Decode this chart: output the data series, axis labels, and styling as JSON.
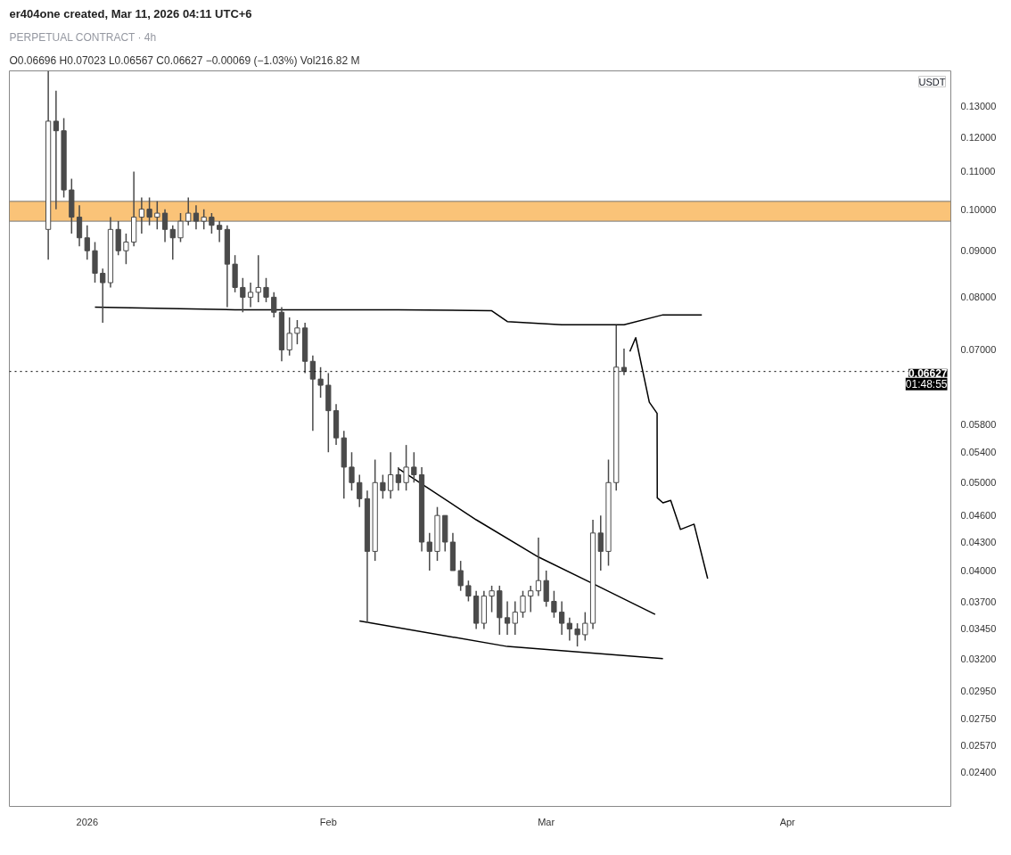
{
  "chart_data": {
    "type": "candlestick",
    "title": "PERPETUAL CONTRACT · 4h",
    "subtitle": "O0.06696 H0.07023 L0.06567 C0.06627 −0.00069 (−1.03%) Vol216.82 M",
    "ylabel": "USDT",
    "annotations": [
      "er404one created, Mar 11, 2026 04:11 UTC+6",
      "01:48:55"
    ],
    "color": "#4a4a4a",
    "log": "y",
    "grid": false,
    "x": [
      "2025-12-27",
      "2025-12-28",
      "2025-12-29",
      "2025-12-30",
      "2025-12-31",
      "2026-01-01",
      "2026-01-02",
      "2026-01-03",
      "2026-01-04",
      "2026-01-05",
      "2026-01-06",
      "2026-01-07",
      "2026-01-08",
      "2026-01-09",
      "2026-01-10",
      "2026-01-11",
      "2026-01-12",
      "2026-01-13",
      "2026-01-14",
      "2026-01-15",
      "2026-01-16",
      "2026-01-17",
      "2026-01-18",
      "2026-01-19",
      "2026-01-20",
      "2026-01-21",
      "2026-01-22",
      "2026-01-23",
      "2026-01-24",
      "2026-01-25",
      "2026-01-26",
      "2026-01-27",
      "2026-01-28",
      "2026-01-29",
      "2026-01-30",
      "2026-01-31",
      "2026-02-01",
      "2026-02-02",
      "2026-02-03",
      "2026-02-04",
      "2026-02-05",
      "2026-02-06",
      "2026-02-07",
      "2026-02-08",
      "2026-02-09",
      "2026-02-10",
      "2026-02-11",
      "2026-02-12",
      "2026-02-13",
      "2026-02-14",
      "2026-02-15",
      "2026-02-16",
      "2026-02-17",
      "2026-02-18",
      "2026-02-19",
      "2026-02-20",
      "2026-02-21",
      "2026-02-22",
      "2026-02-23",
      "2026-02-24",
      "2026-02-25",
      "2026-02-26",
      "2026-02-27",
      "2026-02-28",
      "2026-03-01",
      "2026-03-02",
      "2026-03-03",
      "2026-03-04",
      "2026-03-05",
      "2026-03-06",
      "2026-03-07",
      "2026-03-08",
      "2026-03-09",
      "2026-03-10",
      "2026-03-11"
    ],
    "ohlc": [
      [
        0.095,
        0.142,
        0.088,
        0.125
      ],
      [
        0.125,
        0.135,
        0.1,
        0.122
      ],
      [
        0.122,
        0.126,
        0.103,
        0.105
      ],
      [
        0.105,
        0.108,
        0.094,
        0.098
      ],
      [
        0.098,
        0.101,
        0.091,
        0.093
      ],
      [
        0.093,
        0.096,
        0.088,
        0.09
      ],
      [
        0.09,
        0.092,
        0.083,
        0.085
      ],
      [
        0.085,
        0.086,
        0.075,
        0.083
      ],
      [
        0.083,
        0.098,
        0.082,
        0.095
      ],
      [
        0.095,
        0.097,
        0.089,
        0.09
      ],
      [
        0.09,
        0.094,
        0.087,
        0.092
      ],
      [
        0.092,
        0.11,
        0.091,
        0.098
      ],
      [
        0.098,
        0.103,
        0.094,
        0.1
      ],
      [
        0.1,
        0.103,
        0.096,
        0.098
      ],
      [
        0.098,
        0.102,
        0.095,
        0.099
      ],
      [
        0.099,
        0.1,
        0.092,
        0.095
      ],
      [
        0.095,
        0.096,
        0.088,
        0.093
      ],
      [
        0.093,
        0.099,
        0.092,
        0.097
      ],
      [
        0.097,
        0.103,
        0.096,
        0.099
      ],
      [
        0.099,
        0.101,
        0.095,
        0.097
      ],
      [
        0.097,
        0.1,
        0.095,
        0.098
      ],
      [
        0.098,
        0.099,
        0.094,
        0.096
      ],
      [
        0.096,
        0.097,
        0.092,
        0.095
      ],
      [
        0.095,
        0.096,
        0.078,
        0.087
      ],
      [
        0.087,
        0.089,
        0.081,
        0.082
      ],
      [
        0.082,
        0.084,
        0.077,
        0.08
      ],
      [
        0.08,
        0.083,
        0.078,
        0.081
      ],
      [
        0.081,
        0.089,
        0.079,
        0.082
      ],
      [
        0.082,
        0.084,
        0.079,
        0.08
      ],
      [
        0.08,
        0.081,
        0.076,
        0.077
      ],
      [
        0.077,
        0.078,
        0.068,
        0.07
      ],
      [
        0.07,
        0.076,
        0.069,
        0.073
      ],
      [
        0.073,
        0.0755,
        0.071,
        0.074
      ],
      [
        0.074,
        0.075,
        0.066,
        0.068
      ],
      [
        0.068,
        0.069,
        0.057,
        0.065
      ],
      [
        0.065,
        0.067,
        0.062,
        0.064
      ],
      [
        0.064,
        0.066,
        0.054,
        0.06
      ],
      [
        0.06,
        0.061,
        0.055,
        0.056
      ],
      [
        0.056,
        0.057,
        0.048,
        0.052
      ],
      [
        0.052,
        0.054,
        0.049,
        0.05
      ],
      [
        0.05,
        0.051,
        0.047,
        0.048
      ],
      [
        0.048,
        0.049,
        0.035,
        0.042
      ],
      [
        0.042,
        0.053,
        0.041,
        0.05
      ],
      [
        0.05,
        0.051,
        0.048,
        0.049
      ],
      [
        0.049,
        0.054,
        0.048,
        0.051
      ],
      [
        0.051,
        0.052,
        0.049,
        0.05
      ],
      [
        0.05,
        0.055,
        0.049,
        0.052
      ],
      [
        0.052,
        0.054,
        0.05,
        0.051
      ],
      [
        0.051,
        0.052,
        0.042,
        0.043
      ],
      [
        0.043,
        0.044,
        0.04,
        0.042
      ],
      [
        0.042,
        0.047,
        0.041,
        0.046
      ],
      [
        0.046,
        0.046,
        0.042,
        0.043
      ],
      [
        0.043,
        0.044,
        0.04,
        0.04
      ],
      [
        0.04,
        0.041,
        0.038,
        0.0385
      ],
      [
        0.0385,
        0.039,
        0.037,
        0.0375
      ],
      [
        0.0375,
        0.038,
        0.0345,
        0.035
      ],
      [
        0.035,
        0.038,
        0.0345,
        0.0375
      ],
      [
        0.0375,
        0.0385,
        0.036,
        0.038
      ],
      [
        0.038,
        0.0385,
        0.034,
        0.0355
      ],
      [
        0.0355,
        0.037,
        0.034,
        0.035
      ],
      [
        0.035,
        0.037,
        0.034,
        0.036
      ],
      [
        0.036,
        0.038,
        0.0355,
        0.0375
      ],
      [
        0.0375,
        0.0385,
        0.036,
        0.038
      ],
      [
        0.038,
        0.0435,
        0.0375,
        0.039
      ],
      [
        0.039,
        0.04,
        0.0365,
        0.037
      ],
      [
        0.037,
        0.038,
        0.0355,
        0.036
      ],
      [
        0.036,
        0.037,
        0.034,
        0.035
      ],
      [
        0.035,
        0.0355,
        0.0335,
        0.0345
      ],
      [
        0.0345,
        0.035,
        0.033,
        0.034
      ],
      [
        0.034,
        0.036,
        0.0335,
        0.035
      ],
      [
        0.035,
        0.0455,
        0.0345,
        0.044
      ],
      [
        0.044,
        0.046,
        0.04,
        0.042
      ],
      [
        0.042,
        0.053,
        0.0405,
        0.05
      ],
      [
        0.05,
        0.0745,
        0.049,
        0.067
      ],
      [
        0.06696,
        0.07023,
        0.06567,
        0.06627
      ]
    ],
    "series": [
      {
        "type": "line",
        "color": "#000000",
        "x": [
          "2026-01-02",
          "2026-01-20",
          "2026-02-10",
          "2026-02-22",
          "2026-02-24",
          "2026-03-03",
          "2026-03-11",
          "2026-03-16",
          "2026-03-21"
        ],
        "values": [
          0.078,
          0.0775,
          0.0775,
          0.0773,
          0.0752,
          0.0746,
          0.0746,
          0.0765,
          0.0765
        ]
      },
      {
        "type": "line",
        "color": "#000000",
        "x": [
          "2026-02-10",
          "2026-02-20",
          "2026-02-28",
          "2026-03-07",
          "2026-03-15"
        ],
        "values": [
          0.0518,
          0.0455,
          0.0414,
          0.0387,
          0.0358
        ]
      },
      {
        "type": "line",
        "color": "#000000",
        "x": [
          "2026-02-05",
          "2026-02-24",
          "2026-03-16"
        ],
        "values": [
          0.0352,
          0.033,
          0.032
        ]
      },
      {
        "type": "line",
        "color": "#000000",
        "x": [
          "2026-03-11T18:00",
          "2026-03-12T12:00",
          "2026-03-14T06:00",
          "2026-03-15T06:00",
          "2026-03-15T06:30",
          "2026-03-16T00:00",
          "2026-03-17T00:00",
          "2026-03-18T06:00",
          "2026-03-20T00:00",
          "2026-03-21T18:00"
        ],
        "values": [
          0.0697,
          0.0722,
          0.0613,
          0.0596,
          0.0481,
          0.0475,
          0.0478,
          0.0444,
          0.045,
          0.0392
        ]
      }
    ],
    "bands": [
      {
        "axis": "y",
        "from": 0.097,
        "to": 0.102,
        "color": "#f9b860"
      }
    ],
    "ref_lines": [
      {
        "axis": "y",
        "value": 0.06627,
        "label": "0.06627",
        "line_style": "dotted",
        "color": "#000000"
      }
    ],
    "xlim": [
      "2025-12-22",
      "2026-04-22"
    ],
    "xticks": [
      {
        "value": "2026-01-01",
        "label": "2026"
      },
      {
        "value": "2026-02-01",
        "label": "Feb"
      },
      {
        "value": "2026-03-01",
        "label": "Mar"
      },
      {
        "value": "2026-04-01",
        "label": "Apr"
      }
    ],
    "ylim": [
      0.022,
      0.142
    ],
    "yticks": [
      {
        "value": 0.13,
        "label": "0.13000"
      },
      {
        "value": 0.12,
        "label": "0.12000"
      },
      {
        "value": 0.11,
        "label": "0.11000"
      },
      {
        "value": 0.1,
        "label": "0.10000"
      },
      {
        "value": 0.09,
        "label": "0.09000"
      },
      {
        "value": 0.08,
        "label": "0.08000"
      },
      {
        "value": 0.07,
        "label": "0.07000"
      },
      {
        "value": 0.058,
        "label": "0.05800"
      },
      {
        "value": 0.054,
        "label": "0.05400"
      },
      {
        "value": 0.05,
        "label": "0.05000"
      },
      {
        "value": 0.046,
        "label": "0.04600"
      },
      {
        "value": 0.043,
        "label": "0.04300"
      },
      {
        "value": 0.04,
        "label": "0.04000"
      },
      {
        "value": 0.037,
        "label": "0.03700"
      },
      {
        "value": 0.0345,
        "label": "0.03450"
      },
      {
        "value": 0.032,
        "label": "0.03200"
      },
      {
        "value": 0.0295,
        "label": "0.02950"
      },
      {
        "value": 0.0275,
        "label": "0.02750"
      },
      {
        "value": 0.0257,
        "label": "0.02570"
      },
      {
        "value": 0.024,
        "label": "0.02400"
      }
    ]
  }
}
